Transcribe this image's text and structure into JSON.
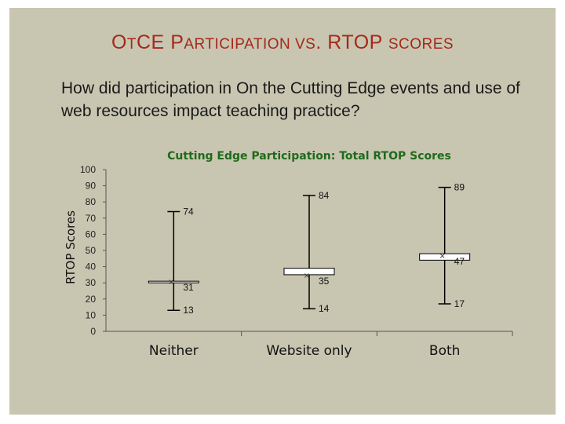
{
  "slide": {
    "title_parts": [
      {
        "t": "O",
        "big": true
      },
      {
        "t": "T",
        "big": false
      },
      {
        "t": "CE ",
        "big": true
      },
      {
        "t": "P",
        "big": true
      },
      {
        "t": "ARTICIPATION VS",
        "big": false
      },
      {
        "t": ". ",
        "big": true
      },
      {
        "t": "RTOP ",
        "big": true
      },
      {
        "t": "SCORES",
        "big": false
      }
    ],
    "question": "How did participation in On the Cutting Edge events and use of web resources impact teaching practice?"
  },
  "colors": {
    "slide_bg": "#c8c6b1",
    "title": "#a5281b",
    "chart_title": "#1f6a1a",
    "box": "#ffffff",
    "line": "#000000"
  },
  "chart_data": {
    "type": "box",
    "title": "Cutting Edge Participation: Total RTOP Scores",
    "ylabel": "RTOP Scores",
    "xlabel": "",
    "ylim": [
      0,
      100
    ],
    "yticks": [
      0,
      10,
      20,
      30,
      40,
      50,
      60,
      70,
      80,
      90,
      100
    ],
    "grid": false,
    "categories": [
      "Neither",
      "Website only",
      "Both"
    ],
    "boxes": [
      {
        "category": "Neither",
        "min": 13,
        "q1": 30,
        "median": 31,
        "q3": 31,
        "max": 74,
        "labels": {
          "max": "74",
          "median": "31",
          "min": "13"
        }
      },
      {
        "category": "Website only",
        "min": 14,
        "q1": 35,
        "median": 35,
        "q3": 39,
        "max": 84,
        "labels": {
          "max": "84",
          "median": "35",
          "min": "14"
        }
      },
      {
        "category": "Both",
        "min": 17,
        "q1": 44,
        "median": 47,
        "q3": 48,
        "max": 89,
        "labels": {
          "max": "89",
          "median": "47",
          "min": "17"
        }
      }
    ]
  }
}
